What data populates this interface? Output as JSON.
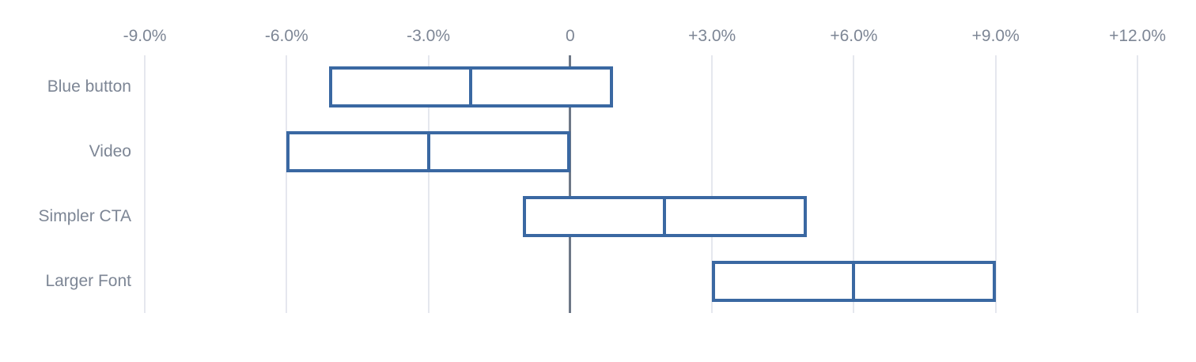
{
  "chart_data": {
    "type": "bar",
    "subtype": "range-interval",
    "title": "",
    "xlabel": "",
    "ylabel": "",
    "unit": "%",
    "categories": [
      "Blue button",
      "Video",
      "Simpler CTA",
      "Larger Font"
    ],
    "series": [
      {
        "name": "confidence-interval",
        "low": [
          -5.1,
          -6.0,
          -1.0,
          3.0
        ],
        "mid": [
          -2.1,
          -3.0,
          2.0,
          6.0
        ],
        "high": [
          0.9,
          0.0,
          5.0,
          9.0
        ]
      }
    ],
    "x_axis": {
      "min": -9,
      "max": 12,
      "ticks": [
        -9,
        -6,
        -3,
        0,
        3,
        6,
        9,
        12
      ],
      "tick_labels": [
        "-9.0%",
        "-6.0%",
        "-3.0%",
        "0",
        "+3.0%",
        "+6.0%",
        "+9.0%",
        "+12.0%"
      ]
    },
    "grid": true,
    "legend": false,
    "colors": {
      "bar_border": "#3a68a2",
      "bar_fill": "#ffffff",
      "zero_line": "#6e7887",
      "gridline": "#e5e7ee",
      "label_text": "#7d8695",
      "background": "#ffffff"
    }
  }
}
